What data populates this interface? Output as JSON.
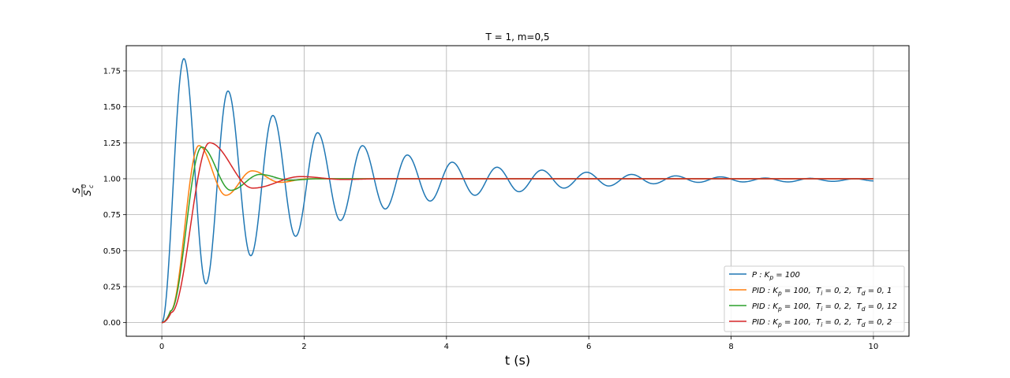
{
  "chart_data": {
    "type": "line",
    "title": "T = 1, m=0,5",
    "xlabel": "t (s)",
    "ylabel": "S/S_c^0",
    "ylabel_num": "S",
    "ylabel_den": "S",
    "ylabel_den_sub": "c",
    "ylabel_den_sup": "0",
    "xlim": [
      -0.5,
      10.5
    ],
    "ylim": [
      -0.095,
      1.925
    ],
    "xticks": [
      0,
      2,
      4,
      6,
      8,
      10
    ],
    "xtick_labels": [
      "0",
      "2",
      "4",
      "6",
      "8",
      "10"
    ],
    "yticks": [
      0.0,
      0.25,
      0.5,
      0.75,
      1.0,
      1.25,
      1.5,
      1.75
    ],
    "ytick_labels": [
      "0.00",
      "0.25",
      "0.50",
      "0.75",
      "1.00",
      "1.25",
      "1.50",
      "1.75"
    ],
    "grid": true,
    "legend_position": "bottom-right",
    "series": [
      {
        "name": "P : K_p = 100",
        "label": "P : Kp = 100",
        "color": "#1f77b4",
        "peaks": [
          [
            0.31,
            1.835
          ],
          [
            0.62,
            0.27
          ],
          [
            0.93,
            1.61
          ],
          [
            1.25,
            0.465
          ],
          [
            1.56,
            1.44
          ],
          [
            1.88,
            0.6
          ],
          [
            2.19,
            1.32
          ],
          [
            2.51,
            0.71
          ],
          [
            2.82,
            1.23
          ],
          [
            3.14,
            0.79
          ],
          [
            3.45,
            1.165
          ],
          [
            3.77,
            0.845
          ],
          [
            4.08,
            1.115
          ],
          [
            4.4,
            0.885
          ],
          [
            4.71,
            1.08
          ],
          [
            5.02,
            0.91
          ],
          [
            5.34,
            1.06
          ],
          [
            5.65,
            0.935
          ],
          [
            5.97,
            1.045
          ],
          [
            6.28,
            0.95
          ],
          [
            6.6,
            1.03
          ],
          [
            6.91,
            0.965
          ],
          [
            7.22,
            1.02
          ],
          [
            7.54,
            0.975
          ],
          [
            7.85,
            1.013
          ],
          [
            8.17,
            0.978
          ],
          [
            8.48,
            1.005
          ],
          [
            8.8,
            0.978
          ],
          [
            9.11,
            1.003
          ],
          [
            9.43,
            0.982
          ],
          [
            9.74,
            1.0
          ],
          [
            10.0,
            0.985
          ]
        ]
      },
      {
        "name": "PID : K_p = 100, T_i = 0,2, T_d = 0,1",
        "label": "PID : Kp = 100,  Ti = 0,2,  Td = 0,1",
        "color": "#ff7f0e",
        "peaks": [
          [
            0.0,
            0.0
          ],
          [
            0.12,
            0.08
          ],
          [
            0.52,
            1.23
          ],
          [
            0.9,
            0.885
          ],
          [
            1.27,
            1.055
          ],
          [
            1.66,
            0.975
          ],
          [
            2.05,
            1.0
          ],
          [
            2.5,
            1.0
          ],
          [
            10.0,
            1.0
          ]
        ]
      },
      {
        "name": "PID : K_p = 100, T_i = 0,2, T_d = 0,12",
        "label": "PID : Kp = 100,  Ti = 0,2,  Td = 0,12",
        "color": "#2ca02c",
        "peaks": [
          [
            0.0,
            0.0
          ],
          [
            0.12,
            0.08
          ],
          [
            0.56,
            1.22
          ],
          [
            0.97,
            0.92
          ],
          [
            1.38,
            1.03
          ],
          [
            1.8,
            0.99
          ],
          [
            2.2,
            1.0
          ],
          [
            2.6,
            1.0
          ],
          [
            10.0,
            1.0
          ]
        ]
      },
      {
        "name": "PID : K_p = 100, T_i = 0,2, T_d = 0,2",
        "label": "PID : Kp = 100,  Ti = 0,2,  Td = 0,2",
        "color": "#d62728",
        "peaks": [
          [
            0.0,
            0.0
          ],
          [
            0.13,
            0.07
          ],
          [
            0.67,
            1.25
          ],
          [
            1.28,
            0.935
          ],
          [
            1.95,
            1.015
          ],
          [
            2.55,
            0.995
          ],
          [
            3.1,
            1.0
          ],
          [
            10.0,
            1.0
          ]
        ]
      }
    ]
  },
  "legend": [
    {
      "pre": "P",
      "sep": " : ",
      "k": "K",
      "ks": "p",
      "kv": " = 100",
      "ti": "",
      "tis": "",
      "tiv": "",
      "td": "",
      "tds": "",
      "tdv": ""
    },
    {
      "pre": "PID",
      "sep": " : ",
      "k": "K",
      "ks": "p",
      "kv": " = 100,",
      "ti": "  T",
      "tis": "i",
      "tiv": " = 0, 2,",
      "td": "  T",
      "tds": "d",
      "tdv": " = 0, 1"
    },
    {
      "pre": "PID",
      "sep": " : ",
      "k": "K",
      "ks": "p",
      "kv": " = 100,",
      "ti": "  T",
      "tis": "i",
      "tiv": " = 0, 2,",
      "td": "  T",
      "tds": "d",
      "tdv": " = 0, 12"
    },
    {
      "pre": "PID",
      "sep": " : ",
      "k": "K",
      "ks": "p",
      "kv": " = 100,",
      "ti": "  T",
      "tis": "i",
      "tiv": " = 0, 2,",
      "td": "  T",
      "tds": "d",
      "tdv": " = 0, 2"
    }
  ],
  "colors": {
    "grid": "#b0b0b0",
    "axis": "#000000",
    "legend_border": "#cccccc"
  }
}
